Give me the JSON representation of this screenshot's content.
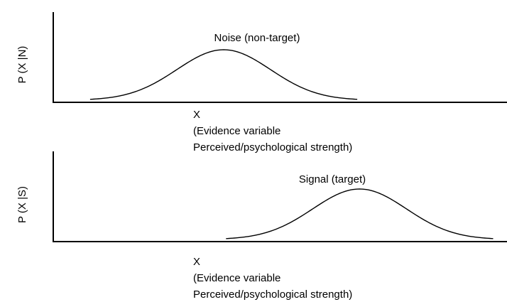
{
  "chart_data": [
    {
      "type": "line",
      "series": [
        {
          "name": "Noise (non-target)",
          "shape": "gaussian",
          "mean": 0,
          "sd": 1
        }
      ],
      "xlabel": [
        "X",
        "(Evidence variable",
        "Perceived/psychological strength)"
      ],
      "ylabel": "P (X |N)",
      "grid": false,
      "ticks": false
    },
    {
      "type": "line",
      "series": [
        {
          "name": "Signal (target)",
          "shape": "gaussian",
          "mean": 2.9,
          "sd": 1
        }
      ],
      "xlabel": [
        "X",
        "(Evidence variable",
        "Perceived/psychological strength)"
      ],
      "ylabel": "P (X |S)",
      "grid": false,
      "ticks": false
    }
  ],
  "colors": {
    "line": "#000000",
    "axis": "#000000",
    "background": "#ffffff"
  }
}
